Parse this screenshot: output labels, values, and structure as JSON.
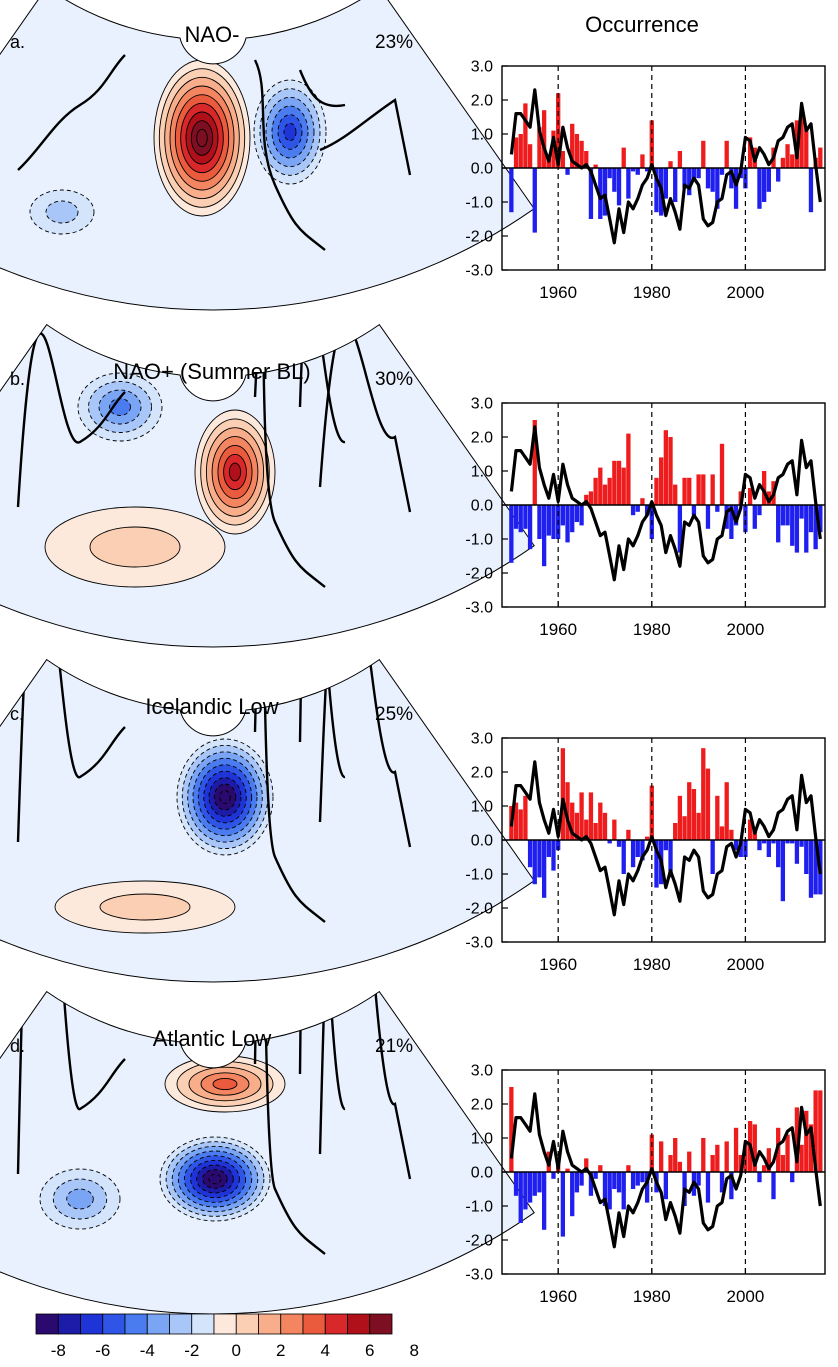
{
  "figure": {
    "right_column_title": "Occurrence",
    "colorbar": {
      "tick_labels": [
        "-8",
        "-6",
        "-4",
        "-2",
        "0",
        "2",
        "4",
        "6",
        "8"
      ],
      "colors": [
        "#2a0a6e",
        "#1c1ca8",
        "#1f34d6",
        "#2f55e6",
        "#4a7cef",
        "#7aa4f4",
        "#a8c6f8",
        "#d3e4fb",
        "#fde9dc",
        "#fbcfb4",
        "#f8ae8a",
        "#f38660",
        "#ea5a3c",
        "#d8282a",
        "#b0101a",
        "#7e0e22"
      ]
    },
    "colors": {
      "positive_bar": "#ee1c1c",
      "negative_bar": "#1f1ff0",
      "line": "#000000"
    }
  },
  "panels": [
    {
      "letter": "a.",
      "title": "NAO-",
      "percent": "23%",
      "pattern": "nao_minus"
    },
    {
      "letter": "b.",
      "title": "NAO+ (Summer BL)",
      "percent": "30%",
      "pattern": "nao_plus"
    },
    {
      "letter": "c.",
      "title": "Icelandic Low",
      "percent": "25%",
      "pattern": "icelandic_low"
    },
    {
      "letter": "d.",
      "title": "Atlantic Low",
      "percent": "21%",
      "pattern": "atlantic_low"
    }
  ],
  "chart_data": {
    "type": "bar",
    "x": [
      1950,
      1951,
      1952,
      1953,
      1954,
      1955,
      1956,
      1957,
      1958,
      1959,
      1960,
      1961,
      1962,
      1963,
      1964,
      1965,
      1966,
      1967,
      1968,
      1969,
      1970,
      1971,
      1972,
      1973,
      1974,
      1975,
      1976,
      1977,
      1978,
      1979,
      1980,
      1981,
      1982,
      1983,
      1984,
      1985,
      1986,
      1987,
      1988,
      1989,
      1990,
      1991,
      1992,
      1993,
      1994,
      1995,
      1996,
      1997,
      1998,
      1999,
      2000,
      2001,
      2002,
      2003,
      2004,
      2005,
      2006,
      2007,
      2008,
      2009,
      2010,
      2011,
      2012,
      2013,
      2014,
      2015,
      2016
    ],
    "xticks": [
      1960,
      1980,
      2000
    ],
    "yticks": [
      3.0,
      2.0,
      1.0,
      0.0,
      -1.0,
      -2.0,
      -3.0
    ],
    "ytick_labels": [
      "3.0",
      "2.0",
      "1.0",
      "0.0",
      "-1.0",
      "-2.0",
      "-3.0"
    ],
    "ylim": [
      -3.0,
      3.0
    ],
    "xlim": [
      1948,
      2017
    ],
    "reference_lines": [
      1960,
      1980,
      2000
    ],
    "line_series": [
      0.4,
      1.6,
      1.6,
      1.4,
      1.2,
      2.3,
      1.1,
      0.6,
      0.2,
      0.9,
      0.1,
      1.2,
      0.6,
      0.2,
      0.1,
      0.0,
      0.1,
      -0.1,
      -0.5,
      -0.9,
      -0.8,
      -1.5,
      -2.2,
      -1.2,
      -1.9,
      -1.0,
      -1.2,
      -0.9,
      -0.5,
      -0.3,
      0.1,
      -0.3,
      -0.6,
      -1.4,
      -0.9,
      -1.3,
      -1.8,
      -0.5,
      -0.6,
      -0.3,
      -0.5,
      -1.5,
      -1.7,
      -1.6,
      -1.0,
      -0.9,
      -0.2,
      -0.1,
      -0.5,
      -0.1,
      0.9,
      0.8,
      0.2,
      0.6,
      0.4,
      0.1,
      0.3,
      0.8,
      0.9,
      1.2,
      1.3,
      0.3,
      1.9,
      1.1,
      1.3,
      0.1,
      -1.0
    ],
    "bar_series": [
      {
        "panel": "a.",
        "values": [
          -1.3,
          0.9,
          1.0,
          1.9,
          0.7,
          -1.9,
          1.2,
          1.7,
          0.4,
          1.1,
          2.2,
          0.5,
          -0.2,
          1.3,
          1.0,
          0.8,
          0.5,
          -1.5,
          0.1,
          -1.5,
          -1.4,
          -0.3,
          -0.7,
          -1.1,
          0.6,
          -0.9,
          -0.1,
          -0.2,
          0.4,
          -0.1,
          1.4,
          -1.3,
          -1.4,
          -0.9,
          0.2,
          -1.0,
          0.5,
          -0.6,
          -0.8,
          -0.4,
          -0.3,
          0.8,
          -0.6,
          -0.7,
          -1.2,
          -0.2,
          0.8,
          -0.6,
          -1.2,
          -0.3,
          -0.6,
          0.9,
          0.6,
          -1.2,
          -1.0,
          -0.7,
          0.6,
          -0.4,
          0.3,
          0.7,
          0.4,
          1.4,
          1.7,
          1.2,
          -1.3,
          0.3,
          0.6
        ]
      },
      {
        "panel": "b.",
        "values": [
          -1.7,
          -0.7,
          -0.8,
          -0.7,
          -1.3,
          2.5,
          -1.0,
          -1.8,
          -0.9,
          -1.0,
          -1.0,
          -0.6,
          -1.1,
          -0.8,
          -0.5,
          -0.6,
          0.3,
          0.4,
          0.8,
          1.1,
          0.6,
          0.8,
          1.3,
          1.3,
          1.1,
          2.1,
          -0.3,
          -0.2,
          0.2,
          -0.3,
          -1.0,
          0.8,
          1.4,
          2.2,
          2.0,
          0.6,
          -1.4,
          0.8,
          0.8,
          -0.3,
          0.9,
          0.9,
          -0.7,
          0.9,
          -0.2,
          1.8,
          -0.7,
          -1.0,
          -0.6,
          0.4,
          -0.8,
          0.5,
          -0.7,
          -0.3,
          1.0,
          0.4,
          0.7,
          -1.1,
          -0.6,
          -0.6,
          -1.2,
          -1.4,
          -0.4,
          -1.4,
          -0.8,
          -1.3,
          -0.8
        ]
      },
      {
        "panel": "c.",
        "values": [
          1.0,
          1.1,
          0.9,
          1.3,
          -0.8,
          -1.3,
          -1.1,
          -1.7,
          -0.5,
          -0.9,
          -0.3,
          2.7,
          1.7,
          1.1,
          0.8,
          1.4,
          0.6,
          1.4,
          0.5,
          1.1,
          0.8,
          -0.1,
          0.6,
          -0.2,
          -1.0,
          0.3,
          -0.8,
          -0.5,
          -0.6,
          0.1,
          1.6,
          -1.4,
          -1.3,
          -0.3,
          -1.1,
          0.5,
          1.3,
          0.7,
          1.7,
          1.5,
          0.8,
          2.7,
          2.1,
          -1.0,
          1.3,
          0.4,
          1.7,
          0.3,
          -0.3,
          -0.5,
          -0.5,
          0.6,
          0.3,
          -0.3,
          -0.1,
          -0.5,
          -0.1,
          -0.8,
          -1.8,
          -0.1,
          -0.1,
          -0.7,
          -0.2,
          -1.0,
          -1.7,
          -1.6,
          -1.6
        ]
      },
      {
        "panel": "d.",
        "values": [
          2.5,
          -0.7,
          -1.5,
          -1.1,
          -0.9,
          -0.7,
          -0.6,
          -1.7,
          0.6,
          -0.2,
          0.2,
          -1.9,
          0.1,
          -1.3,
          -0.6,
          -0.4,
          0.4,
          -0.7,
          -0.2,
          0.2,
          -1.0,
          -1.1,
          -0.5,
          -0.6,
          -1.1,
          0.2,
          -0.5,
          -0.4,
          -0.3,
          -0.9,
          1.1,
          -0.6,
          0.9,
          -0.8,
          0.5,
          1.0,
          0.3,
          -1.0,
          0.6,
          -0.7,
          -0.4,
          1.0,
          -0.9,
          0.5,
          0.8,
          -0.6,
          0.9,
          -0.8,
          1.3,
          0.5,
          0.8,
          1.5,
          1.4,
          -0.3,
          0.2,
          0.7,
          -0.8,
          1.3,
          0.5,
          1.1,
          -0.3,
          1.9,
          0.8,
          1.8,
          1.4,
          2.4,
          2.4
        ]
      }
    ]
  }
}
